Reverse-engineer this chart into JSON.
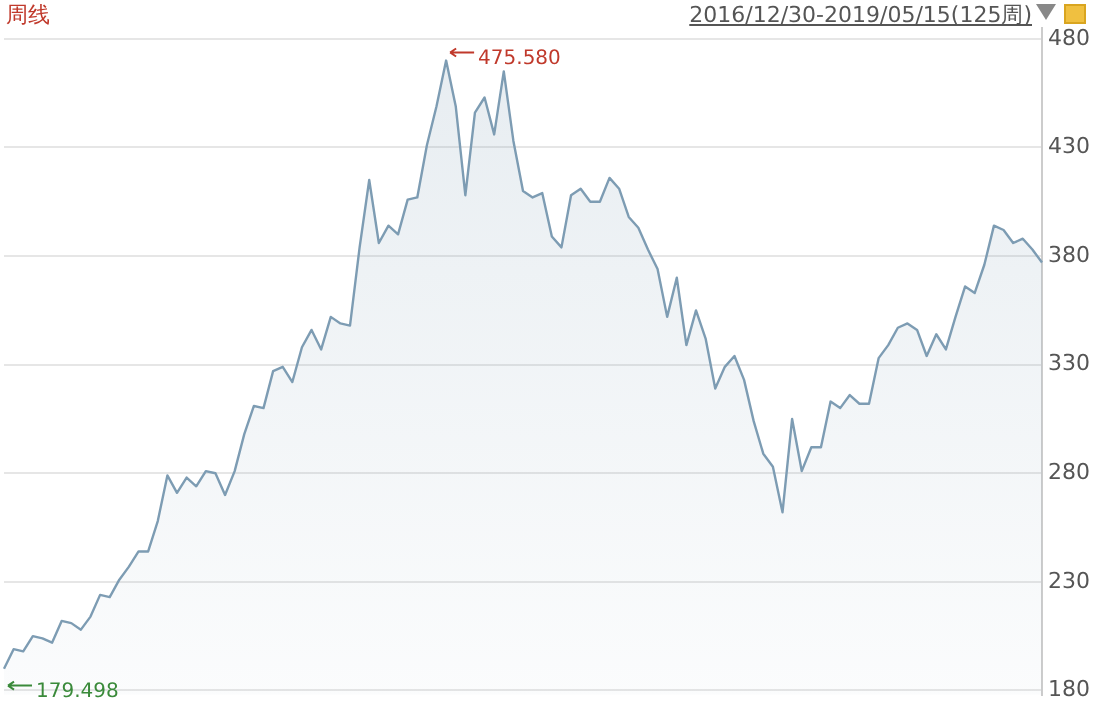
{
  "chart_data": {
    "type": "area",
    "title": "周线",
    "subtitle": "2016/12/30-2019/05/15(125周)",
    "categories": [
      null,
      null,
      null,
      null,
      null,
      null,
      null,
      null,
      null,
      null,
      null,
      null,
      null,
      null,
      null,
      null,
      null,
      null,
      null,
      null,
      null,
      null,
      null,
      null,
      null,
      null,
      null,
      null,
      null,
      null,
      null,
      null,
      null,
      null,
      null,
      null,
      null,
      null,
      null,
      null,
      null,
      null,
      null,
      null,
      null,
      null,
      null,
      null,
      null,
      null,
      null,
      null,
      null,
      null,
      null,
      null,
      null,
      null,
      null,
      null,
      null,
      null,
      null,
      null,
      null,
      null,
      null,
      null,
      null,
      null,
      null,
      null,
      null,
      null,
      null,
      null,
      null,
      null,
      null,
      null,
      null,
      null,
      null,
      null,
      null,
      null,
      null,
      null,
      null,
      null,
      null,
      null,
      null,
      null,
      null,
      null,
      null,
      null,
      null,
      null,
      null,
      null,
      null,
      null,
      null,
      null,
      null,
      null,
      null
    ],
    "series": [
      {
        "color": "#7d9cb3",
        "values": [
          190,
          199,
          198,
          205,
          204,
          202,
          212,
          211,
          208,
          214,
          224,
          223,
          231,
          237,
          244,
          244,
          258,
          279,
          271,
          278,
          274,
          281,
          280,
          270,
          281,
          298,
          311,
          310,
          327,
          329,
          322,
          338,
          346,
          337,
          352,
          349,
          348,
          384,
          415,
          386,
          394,
          390,
          406,
          407,
          431,
          449,
          470,
          449,
          408,
          446,
          453,
          436,
          465,
          433,
          410,
          407,
          409,
          389,
          384,
          408,
          411,
          405,
          405,
          416,
          411,
          398,
          393,
          383,
          374,
          352,
          370,
          339,
          355,
          342,
          319,
          329,
          334,
          323,
          304,
          289,
          283,
          262,
          305,
          281,
          292,
          292,
          313,
          310,
          316,
          312,
          312,
          333,
          339,
          347,
          349,
          346,
          334,
          344,
          337,
          352,
          366,
          363,
          376,
          394,
          392,
          386,
          388,
          383,
          377
        ]
      }
    ],
    "ylim": [
      178,
      485
    ],
    "yticks": [
      180,
      230,
      280,
      330,
      380,
      430,
      480
    ],
    "annotations": [
      "475.580",
      "179.498"
    ],
    "grid": "y",
    "tick_labels": "y",
    "marker": "none",
    "legend": false
  }
}
